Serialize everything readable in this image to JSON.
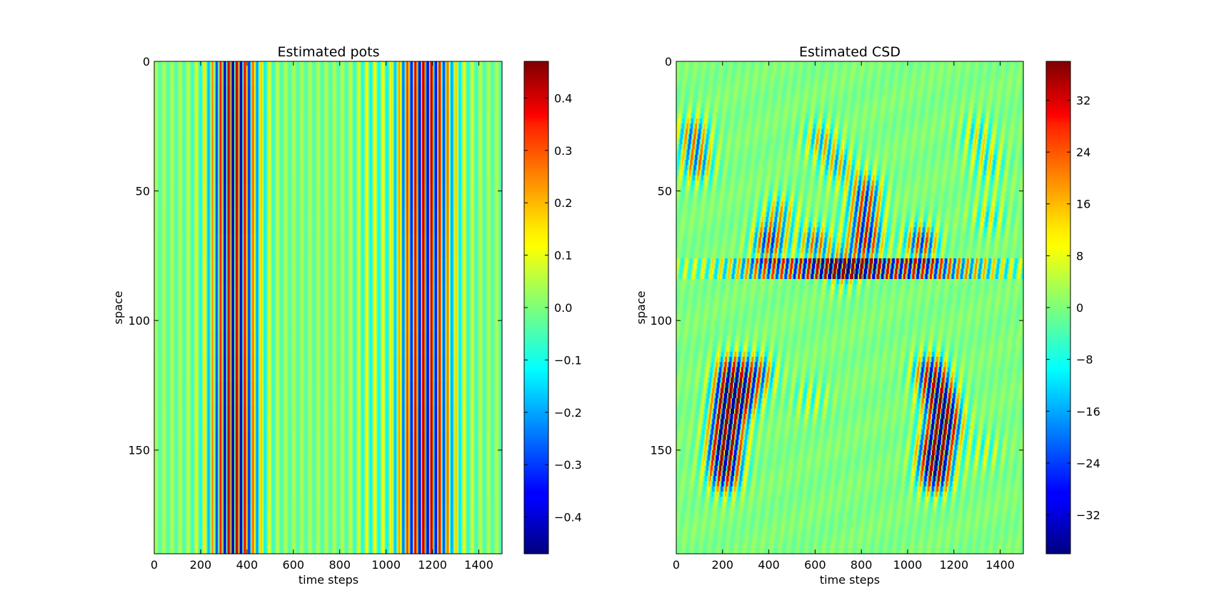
{
  "chart_data": [
    {
      "type": "heatmap",
      "title": "Estimated pots",
      "xlabel": "time steps",
      "ylabel": "space",
      "xlim": [
        0,
        1500
      ],
      "ylim": [
        190,
        0
      ],
      "xticks": [
        0,
        200,
        400,
        600,
        800,
        1000,
        1200,
        1400
      ],
      "yticks": [
        0,
        50,
        100,
        150
      ],
      "colormap": "jet",
      "colorbar": {
        "range": [
          -0.47,
          0.47
        ],
        "ticks": [
          -0.4,
          -0.3,
          -0.2,
          -0.1,
          0.0,
          0.1,
          0.2,
          0.3,
          0.4
        ],
        "tick_labels": [
          "−0.4",
          "−0.3",
          "−0.2",
          "−0.1",
          "0.0",
          "0.1",
          "0.2",
          "0.3",
          "0.4"
        ]
      },
      "pattern": "vertical oscillating stripes constant along space; strong bursts at time ~230-450 and ~1050-1290 reaching ±0.45"
    },
    {
      "type": "heatmap",
      "title": "Estimated CSD",
      "xlabel": "time steps",
      "ylabel": "space",
      "xlim": [
        0,
        1500
      ],
      "ylim": [
        190,
        0
      ],
      "xticks": [
        0,
        200,
        400,
        600,
        800,
        1000,
        1200,
        1400
      ],
      "yticks": [
        0,
        50,
        100,
        150
      ],
      "colormap": "jet",
      "colorbar": {
        "range": [
          -38,
          38
        ],
        "ticks": [
          -32,
          -24,
          -16,
          -8,
          0,
          8,
          16,
          24,
          32
        ],
        "tick_labels": [
          "−32",
          "−24",
          "−16",
          "−8",
          "0",
          "8",
          "16",
          "24",
          "32"
        ]
      },
      "pattern": "oscillating sources/sinks localized at space ~20-90 and ~115-165; strongest near space 80 (time 400-1200) and near space 130-150 (time 200 and 1100-1200)"
    }
  ]
}
